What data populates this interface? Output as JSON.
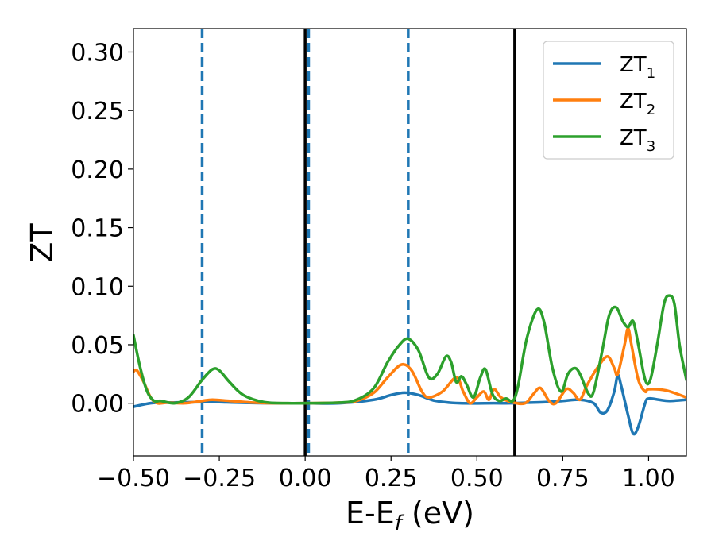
{
  "chart_data": {
    "type": "line",
    "title": "",
    "xlabel_main": "E-E",
    "xlabel_sub": "f",
    "xlabel_unit": " (eV)",
    "ylabel": "ZT",
    "xlim": [
      -0.5,
      1.11
    ],
    "ylim": [
      -0.045,
      0.32
    ],
    "xticks": [
      -0.5,
      -0.25,
      0.0,
      0.25,
      0.5,
      0.75,
      1.0
    ],
    "xtick_labels": [
      "−0.50",
      "−0.25",
      "0.00",
      "0.25",
      "0.50",
      "0.75",
      "1.00"
    ],
    "yticks": [
      0.0,
      0.05,
      0.1,
      0.15,
      0.2,
      0.25,
      0.3
    ],
    "ytick_labels": [
      "0.00",
      "0.05",
      "0.10",
      "0.15",
      "0.20",
      "0.25",
      "0.30"
    ],
    "grid": false,
    "legend_position": "top-right",
    "vlines": [
      {
        "x": -0.3,
        "style": "dashed",
        "color": "#1f77b4"
      },
      {
        "x": 0.01,
        "style": "dashed",
        "color": "#1f77b4"
      },
      {
        "x": 0.3,
        "style": "dashed",
        "color": "#1f77b4"
      },
      {
        "x": 0.0,
        "style": "solid",
        "color": "#000000"
      },
      {
        "x": 0.61,
        "style": "solid",
        "color": "#000000"
      }
    ],
    "series": [
      {
        "name_main": "ZT",
        "name_sub": "1",
        "color": "#1f77b4",
        "points": [
          [
            -0.5,
            -0.003
          ],
          [
            -0.45,
            0.0
          ],
          [
            -0.4,
            0.0005
          ],
          [
            -0.3,
            0.001
          ],
          [
            -0.25,
            0.001
          ],
          [
            -0.2,
            0.0005
          ],
          [
            -0.1,
            0.0
          ],
          [
            0.0,
            0.0
          ],
          [
            0.1,
            0.0
          ],
          [
            0.2,
            0.003
          ],
          [
            0.25,
            0.007
          ],
          [
            0.29,
            0.009
          ],
          [
            0.33,
            0.007
          ],
          [
            0.38,
            0.002
          ],
          [
            0.45,
            0.0
          ],
          [
            0.55,
            0.0
          ],
          [
            0.6,
            0.0
          ],
          [
            0.65,
            0.0005
          ],
          [
            0.7,
            0.001
          ],
          [
            0.75,
            0.002
          ],
          [
            0.8,
            0.003
          ],
          [
            0.84,
            0.0
          ],
          [
            0.86,
            -0.008
          ],
          [
            0.88,
            -0.006
          ],
          [
            0.9,
            0.01
          ],
          [
            0.91,
            0.024
          ],
          [
            0.92,
            0.015
          ],
          [
            0.94,
            -0.01
          ],
          [
            0.955,
            -0.026
          ],
          [
            0.97,
            -0.02
          ],
          [
            0.99,
            0.0
          ],
          [
            1.0,
            0.004
          ],
          [
            1.03,
            0.003
          ],
          [
            1.06,
            0.002
          ],
          [
            1.11,
            0.003
          ]
        ]
      },
      {
        "name_main": "ZT",
        "name_sub": "2",
        "color": "#ff7f0e",
        "points": [
          [
            -0.5,
            0.027
          ],
          [
            -0.49,
            0.028
          ],
          [
            -0.47,
            0.018
          ],
          [
            -0.45,
            0.005
          ],
          [
            -0.43,
            0.0
          ],
          [
            -0.4,
            0.0005
          ],
          [
            -0.35,
            0.0
          ],
          [
            -0.3,
            0.002
          ],
          [
            -0.27,
            0.003
          ],
          [
            -0.22,
            0.002
          ],
          [
            -0.15,
            0.0005
          ],
          [
            -0.1,
            0.0
          ],
          [
            0.0,
            0.0
          ],
          [
            0.1,
            0.0005
          ],
          [
            0.15,
            0.002
          ],
          [
            0.2,
            0.009
          ],
          [
            0.24,
            0.022
          ],
          [
            0.28,
            0.033
          ],
          [
            0.31,
            0.028
          ],
          [
            0.34,
            0.01
          ],
          [
            0.36,
            0.005
          ],
          [
            0.4,
            0.01
          ],
          [
            0.44,
            0.022
          ],
          [
            0.46,
            0.01
          ],
          [
            0.48,
            0.0
          ],
          [
            0.5,
            0.005
          ],
          [
            0.52,
            0.01
          ],
          [
            0.535,
            0.003
          ],
          [
            0.55,
            0.012
          ],
          [
            0.57,
            0.005
          ],
          [
            0.6,
            0.001
          ],
          [
            0.64,
            0.0
          ],
          [
            0.665,
            0.008
          ],
          [
            0.685,
            0.013
          ],
          [
            0.71,
            0.002
          ],
          [
            0.73,
            0.0
          ],
          [
            0.76,
            0.012
          ],
          [
            0.78,
            0.009
          ],
          [
            0.8,
            0.003
          ],
          [
            0.82,
            0.015
          ],
          [
            0.85,
            0.03
          ],
          [
            0.88,
            0.04
          ],
          [
            0.9,
            0.03
          ],
          [
            0.91,
            0.025
          ],
          [
            0.93,
            0.05
          ],
          [
            0.94,
            0.064
          ],
          [
            0.95,
            0.05
          ],
          [
            0.97,
            0.02
          ],
          [
            0.99,
            0.01
          ],
          [
            1.0,
            0.012
          ],
          [
            1.05,
            0.011
          ],
          [
            1.11,
            0.005
          ]
        ]
      },
      {
        "name_main": "ZT",
        "name_sub": "3",
        "color": "#2ca02c",
        "points": [
          [
            -0.5,
            0.058
          ],
          [
            -0.48,
            0.03
          ],
          [
            -0.46,
            0.01
          ],
          [
            -0.44,
            0.002
          ],
          [
            -0.42,
            0.002
          ],
          [
            -0.38,
            0.0
          ],
          [
            -0.34,
            0.005
          ],
          [
            -0.3,
            0.02
          ],
          [
            -0.27,
            0.029
          ],
          [
            -0.25,
            0.028
          ],
          [
            -0.22,
            0.018
          ],
          [
            -0.18,
            0.007
          ],
          [
            -0.12,
            0.001
          ],
          [
            -0.05,
            0.0
          ],
          [
            0.0,
            0.0
          ],
          [
            0.1,
            0.0005
          ],
          [
            0.15,
            0.003
          ],
          [
            0.2,
            0.013
          ],
          [
            0.24,
            0.035
          ],
          [
            0.275,
            0.05
          ],
          [
            0.3,
            0.055
          ],
          [
            0.33,
            0.045
          ],
          [
            0.36,
            0.022
          ],
          [
            0.385,
            0.025
          ],
          [
            0.41,
            0.04
          ],
          [
            0.425,
            0.035
          ],
          [
            0.44,
            0.018
          ],
          [
            0.455,
            0.023
          ],
          [
            0.47,
            0.016
          ],
          [
            0.49,
            0.005
          ],
          [
            0.51,
            0.022
          ],
          [
            0.525,
            0.029
          ],
          [
            0.545,
            0.008
          ],
          [
            0.565,
            0.002
          ],
          [
            0.585,
            0.004
          ],
          [
            0.605,
            0.002
          ],
          [
            0.62,
            0.015
          ],
          [
            0.645,
            0.055
          ],
          [
            0.675,
            0.08
          ],
          [
            0.695,
            0.07
          ],
          [
            0.72,
            0.03
          ],
          [
            0.745,
            0.01
          ],
          [
            0.765,
            0.025
          ],
          [
            0.785,
            0.03
          ],
          [
            0.8,
            0.025
          ],
          [
            0.825,
            0.008
          ],
          [
            0.84,
            0.01
          ],
          [
            0.865,
            0.045
          ],
          [
            0.885,
            0.075
          ],
          [
            0.905,
            0.082
          ],
          [
            0.925,
            0.07
          ],
          [
            0.94,
            0.065
          ],
          [
            0.955,
            0.07
          ],
          [
            0.97,
            0.05
          ],
          [
            0.99,
            0.02
          ],
          [
            1.005,
            0.02
          ],
          [
            1.025,
            0.05
          ],
          [
            1.045,
            0.085
          ],
          [
            1.06,
            0.092
          ],
          [
            1.075,
            0.085
          ],
          [
            1.09,
            0.05
          ],
          [
            1.11,
            0.02
          ]
        ]
      }
    ]
  }
}
